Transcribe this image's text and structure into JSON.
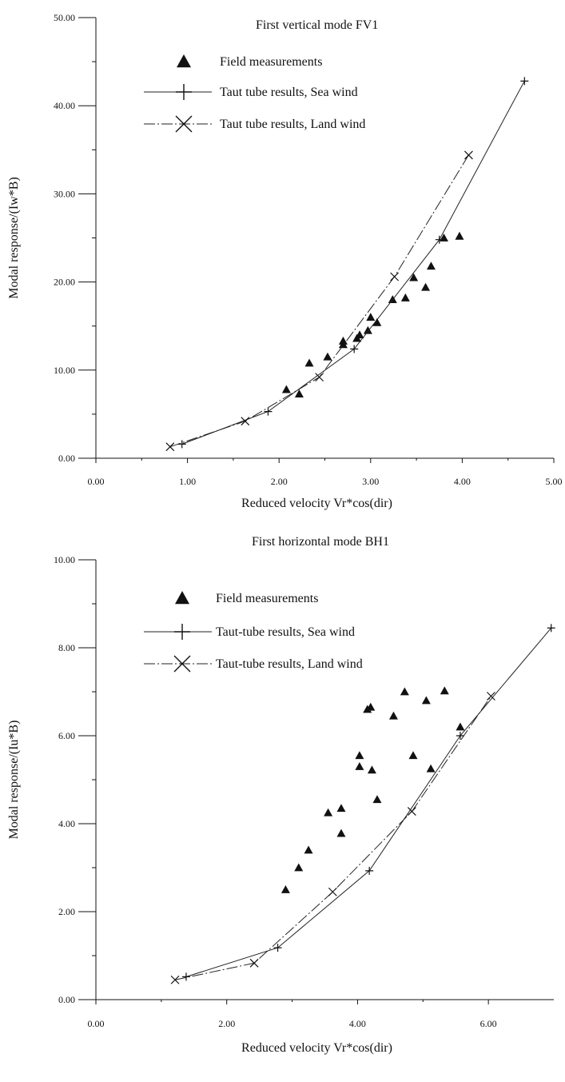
{
  "chart_data": [
    {
      "type": "scatter",
      "title": "First vertical mode FV1",
      "xlabel": "Reduced velocity Vr*cos(dir)",
      "ylabel": "Modal response/(Iw*B)",
      "xlim": [
        0,
        5
      ],
      "ylim": [
        0,
        50
      ],
      "x_ticks": [
        "0.00",
        "1.00",
        "2.00",
        "3.00",
        "4.00",
        "5.00"
      ],
      "y_ticks": [
        "0.00",
        "10.00",
        "20.00",
        "30.00",
        "40.00",
        "50.00"
      ],
      "legend_position": "top-left",
      "series": [
        {
          "name": "Field measurements",
          "marker": "filled-triangle",
          "points": [
            [
              2.08,
              7.8
            ],
            [
              2.22,
              7.3
            ],
            [
              2.33,
              10.8
            ],
            [
              2.53,
              11.5
            ],
            [
              2.7,
              12.9
            ],
            [
              2.7,
              13.3
            ],
            [
              2.85,
              13.6
            ],
            [
              2.88,
              14.0
            ],
            [
              2.97,
              14.5
            ],
            [
              3.0,
              16.0
            ],
            [
              3.07,
              15.4
            ],
            [
              3.24,
              18.0
            ],
            [
              3.38,
              18.2
            ],
            [
              3.47,
              20.5
            ],
            [
              3.6,
              19.4
            ],
            [
              3.66,
              21.8
            ],
            [
              3.8,
              25.0
            ],
            [
              3.97,
              25.2
            ]
          ]
        },
        {
          "name": "Taut tube results, Sea wind",
          "marker": "plus",
          "line": "solid",
          "points": [
            [
              0.94,
              1.6
            ],
            [
              1.88,
              5.3
            ],
            [
              2.82,
              12.4
            ],
            [
              3.75,
              24.8
            ],
            [
              4.68,
              42.8
            ]
          ]
        },
        {
          "name": "Taut tube results, Land wind",
          "marker": "cross",
          "line": "dash-dot",
          "points": [
            [
              0.81,
              1.3
            ],
            [
              1.63,
              4.2
            ],
            [
              2.44,
              9.2
            ],
            [
              3.26,
              20.6
            ],
            [
              4.07,
              34.4
            ]
          ]
        }
      ]
    },
    {
      "type": "scatter",
      "title": "First horizontal mode BH1",
      "xlabel": "Reduced velocity Vr*cos(dir)",
      "ylabel": "Modal response/(Iu*B)",
      "xlim": [
        0,
        7
      ],
      "ylim": [
        0,
        10
      ],
      "x_ticks": [
        "0.00",
        "2.00",
        "4.00",
        "6.00"
      ],
      "y_ticks": [
        "0.00",
        "2.00",
        "4.00",
        "6.00",
        "8.00",
        "10.00"
      ],
      "legend_position": "top-left",
      "series": [
        {
          "name": "Field measurements",
          "marker": "filled-triangle",
          "points": [
            [
              2.9,
              2.5
            ],
            [
              3.1,
              3.0
            ],
            [
              3.25,
              3.4
            ],
            [
              3.55,
              4.25
            ],
            [
              3.75,
              3.78
            ],
            [
              3.75,
              4.35
            ],
            [
              4.03,
              5.55
            ],
            [
              4.03,
              5.3
            ],
            [
              4.15,
              6.6
            ],
            [
              4.2,
              6.65
            ],
            [
              4.22,
              5.22
            ],
            [
              4.3,
              4.55
            ],
            [
              4.55,
              6.45
            ],
            [
              4.72,
              7.0
            ],
            [
              4.85,
              5.55
            ],
            [
              5.05,
              6.8
            ],
            [
              5.12,
              5.25
            ],
            [
              5.33,
              7.02
            ],
            [
              5.57,
              6.2
            ]
          ]
        },
        {
          "name": "Taut-tube results, Sea wind",
          "marker": "plus",
          "line": "solid",
          "points": [
            [
              1.38,
              0.52
            ],
            [
              2.78,
              1.18
            ],
            [
              4.18,
              2.93
            ],
            [
              5.57,
              6.0
            ],
            [
              6.96,
              8.45
            ]
          ]
        },
        {
          "name": "Taut-tube results, Land wind",
          "marker": "cross",
          "line": "dash-dot",
          "points": [
            [
              1.21,
              0.45
            ],
            [
              2.42,
              0.83
            ],
            [
              3.62,
              2.45
            ],
            [
              4.83,
              4.28
            ],
            [
              6.04,
              6.9
            ]
          ]
        }
      ]
    }
  ]
}
